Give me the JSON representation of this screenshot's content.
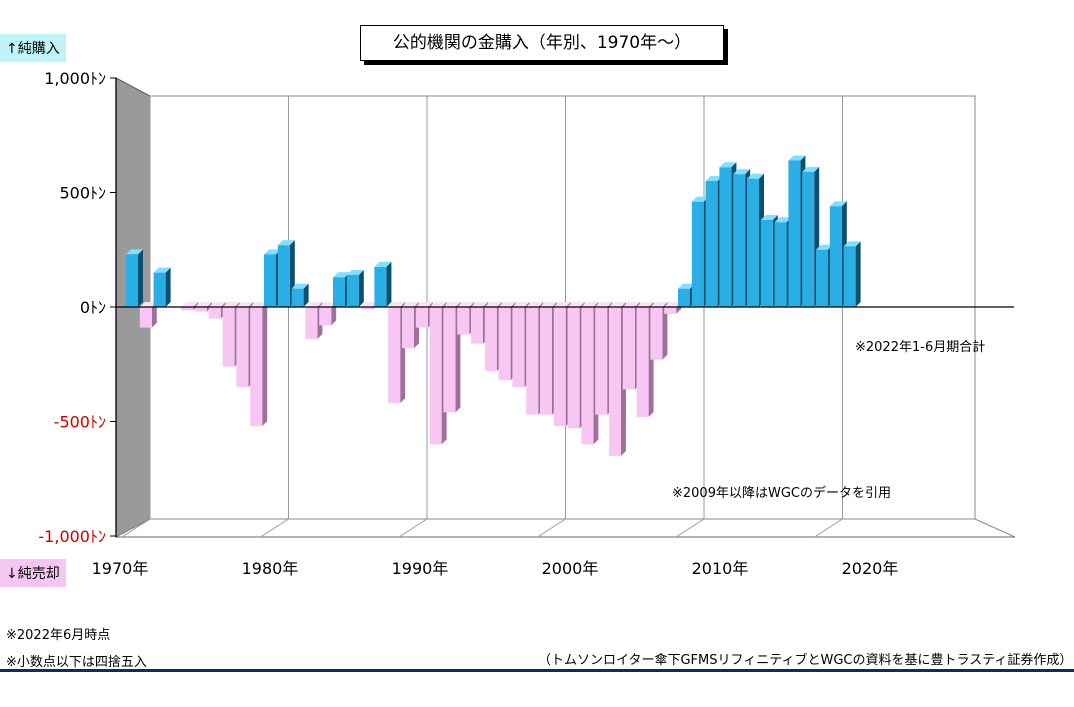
{
  "chart_data": {
    "type": "bar",
    "title": "公的機関の金購入（年別、1970年～）",
    "y_up_label": "↑純購入",
    "y_down_label": "↓純売却",
    "ylim": [
      -1000,
      1000
    ],
    "y_ticks": [
      {
        "value": 1000,
        "label": "1,000ﾄﾝ"
      },
      {
        "value": 500,
        "label": "500ﾄﾝ"
      },
      {
        "value": 0,
        "label": "0ﾄﾝ"
      },
      {
        "value": -500,
        "label": "-500ﾄﾝ"
      },
      {
        "value": -1000,
        "label": "-1,000ﾄﾝ"
      }
    ],
    "x_ticks": [
      {
        "value": 1970,
        "label": "1970年"
      },
      {
        "value": 1980,
        "label": "1980年"
      },
      {
        "value": 1990,
        "label": "1990年"
      },
      {
        "value": 2000,
        "label": "2000年"
      },
      {
        "value": 2010,
        "label": "2010年"
      },
      {
        "value": 2020,
        "label": "2020年"
      }
    ],
    "grid": true,
    "positive_color": "#2aaee6",
    "negative_color": "#f7c6f3",
    "negative_label_color": "#cc0000",
    "years": [
      1970,
      1971,
      1972,
      1973,
      1974,
      1975,
      1976,
      1977,
      1978,
      1979,
      1980,
      1981,
      1982,
      1983,
      1984,
      1985,
      1986,
      1987,
      1988,
      1989,
      1990,
      1991,
      1992,
      1993,
      1994,
      1995,
      1996,
      1997,
      1998,
      1999,
      2000,
      2001,
      2002,
      2003,
      2004,
      2005,
      2006,
      2007,
      2008,
      2009,
      2010,
      2011,
      2012,
      2013,
      2014,
      2015,
      2016,
      2017,
      2018,
      2019,
      2020,
      2021,
      2022
    ],
    "values": [
      230,
      -90,
      150,
      0,
      -15,
      -20,
      -50,
      -260,
      -350,
      -520,
      230,
      270,
      80,
      -140,
      -80,
      130,
      140,
      -10,
      175,
      -420,
      -180,
      -90,
      -600,
      -460,
      -120,
      -160,
      -280,
      -320,
      -350,
      -470,
      -470,
      -520,
      -530,
      -600,
      -470,
      -650,
      -360,
      -480,
      -230,
      -30,
      80,
      460,
      550,
      610,
      580,
      560,
      380,
      370,
      640,
      590,
      250,
      440,
      265
    ]
  },
  "notes": {
    "period_note": "※2022年1-6月期合計",
    "wgc_note": "※2009年以降はWGCのデータを引用",
    "asof_note": "※2022年6月時点",
    "rounding_note": "※小数点以下は四捨五入",
    "source_note": "（トムソンロイター傘下GFMSリフィニティブとWGCの資料を基に豊トラスティ証券作成）"
  }
}
